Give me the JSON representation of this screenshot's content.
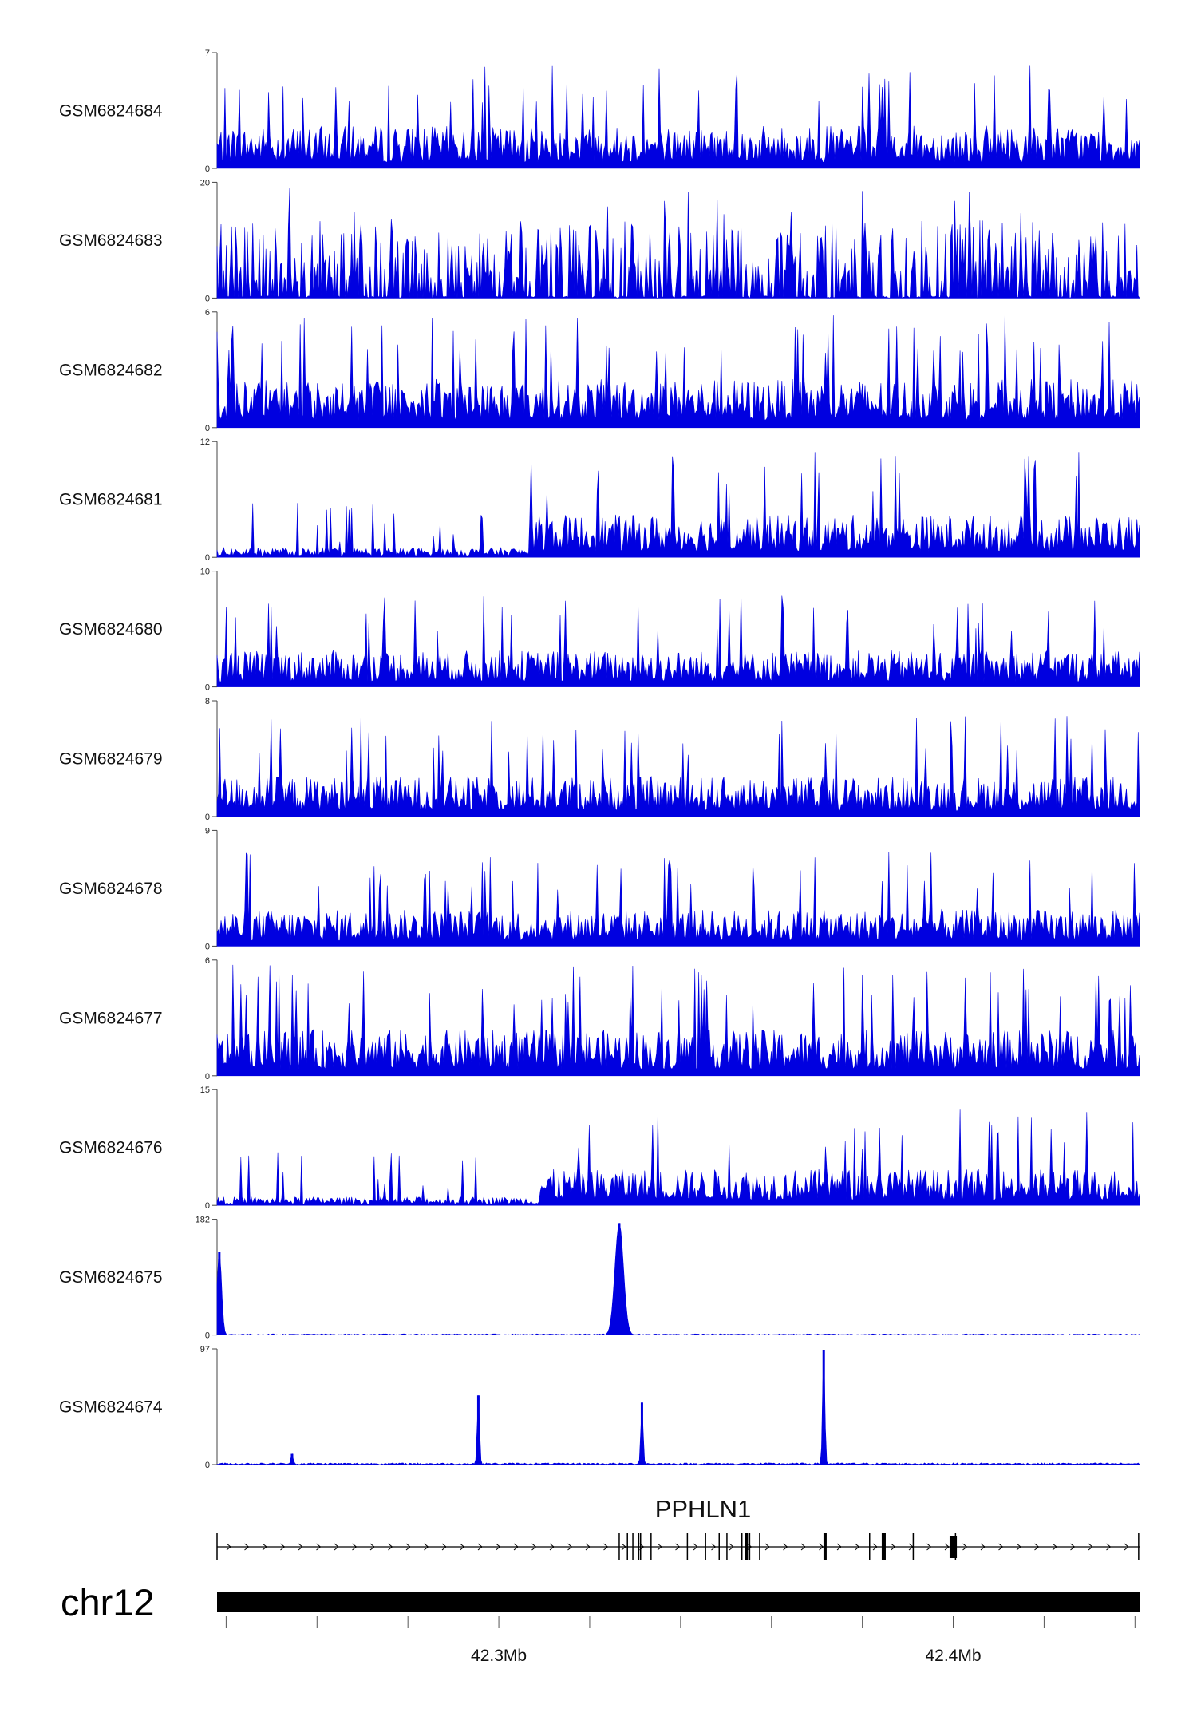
{
  "chart_data": {
    "type": "area",
    "title": "",
    "colors": {
      "signal": "#0000e0",
      "axis": "#444444",
      "gene": "#000000",
      "chrom_bar": "#000000"
    },
    "x_range_mb": [
      42.238,
      42.441
    ],
    "x_unit": "Mb",
    "tracks": [
      {
        "name": "GSM6824684",
        "ymin": 0,
        "ymax": 7,
        "ymax_label": "7",
        "ymin_label": "0",
        "pattern": "noisy",
        "level": 0.35,
        "shift": false,
        "spikes": []
      },
      {
        "name": "GSM6824683",
        "ymin": 0,
        "ymax": 20,
        "ymax_label": "20",
        "ymin_label": "0",
        "pattern": "sparse",
        "level": 0.25,
        "shift": false,
        "spikes": []
      },
      {
        "name": "GSM6824682",
        "ymin": 0,
        "ymax": 6,
        "ymax_label": "6",
        "ymin_label": "0",
        "pattern": "noisy",
        "level": 0.4,
        "shift": false,
        "spikes": []
      },
      {
        "name": "GSM6824681",
        "ymin": 0,
        "ymax": 12,
        "ymax_label": "12",
        "ymin_label": "0",
        "pattern": "noisy",
        "level": 0.35,
        "shift": true,
        "shift_at_mb": 42.307,
        "low_level": 0.08,
        "spikes": []
      },
      {
        "name": "GSM6824680",
        "ymin": 0,
        "ymax": 10,
        "ymax_label": "10",
        "ymin_label": "0",
        "pattern": "noisy",
        "level": 0.3,
        "shift": false,
        "spikes": []
      },
      {
        "name": "GSM6824679",
        "ymin": 0,
        "ymax": 8,
        "ymax_label": "8",
        "ymin_label": "0",
        "pattern": "noisy",
        "level": 0.33,
        "shift": false,
        "spikes": []
      },
      {
        "name": "GSM6824678",
        "ymin": 0,
        "ymax": 9,
        "ymax_label": "9",
        "ymin_label": "0",
        "pattern": "noisy",
        "level": 0.3,
        "shift": false,
        "spikes": []
      },
      {
        "name": "GSM6824677",
        "ymin": 0,
        "ymax": 6,
        "ymax_label": "6",
        "ymin_label": "0",
        "pattern": "noisy",
        "level": 0.38,
        "shift": false,
        "spikes": []
      },
      {
        "name": "GSM6824676",
        "ymin": 0,
        "ymax": 15,
        "ymax_label": "15",
        "ymin_label": "0",
        "pattern": "noisy",
        "level": 0.3,
        "shift": true,
        "shift_at_mb": 42.309,
        "low_level": 0.07,
        "spikes": []
      },
      {
        "name": "GSM6824675",
        "ymin": 0,
        "ymax": 182,
        "ymax_label": "182",
        "ymin_label": "0",
        "pattern": "flat",
        "level": 0.01,
        "spikes": [
          {
            "x_mb": 42.2385,
            "height": 130,
            "width_mb": 0.0008
          },
          {
            "x_mb": 42.3265,
            "height": 176,
            "width_mb": 0.0015
          }
        ]
      },
      {
        "name": "GSM6824674",
        "ymin": 0,
        "ymax": 97,
        "ymax_label": "97",
        "ymin_label": "0",
        "pattern": "flat",
        "level": 0.015,
        "spikes": [
          {
            "x_mb": 42.2545,
            "height": 9,
            "width_mb": 0.0004
          },
          {
            "x_mb": 42.2955,
            "height": 58,
            "width_mb": 0.0004
          },
          {
            "x_mb": 42.3315,
            "height": 52,
            "width_mb": 0.0004
          },
          {
            "x_mb": 42.3715,
            "height": 96,
            "width_mb": 0.0004
          }
        ]
      }
    ],
    "gene": {
      "name": "PPHLN1",
      "strand": "+",
      "start_mb": 42.238,
      "end_mb": 42.441,
      "exons_mb": [
        42.238,
        42.3265,
        42.3283,
        42.3295,
        42.3308,
        42.3312,
        42.3335,
        42.3415,
        42.3455,
        42.3485,
        42.3502,
        42.3535,
        42.3552,
        42.3574,
        42.3717,
        42.3816,
        42.3844,
        42.3912,
        42.4005,
        42.4408
      ],
      "thick_exons_mb": [
        42.3545,
        42.3718,
        42.3848
      ],
      "thick_blocks_mb": [
        [
          42.3992,
          42.4008
        ]
      ]
    },
    "chromosome": {
      "name": "chr12"
    },
    "x_ticks_mb": [
      42.24,
      42.26,
      42.28,
      42.3,
      42.32,
      42.34,
      42.36,
      42.38,
      42.4,
      42.42,
      42.44
    ],
    "x_tick_labels": [
      {
        "x_mb": 42.3,
        "label": "42.3Mb"
      },
      {
        "x_mb": 42.4,
        "label": "42.4Mb"
      }
    ]
  }
}
